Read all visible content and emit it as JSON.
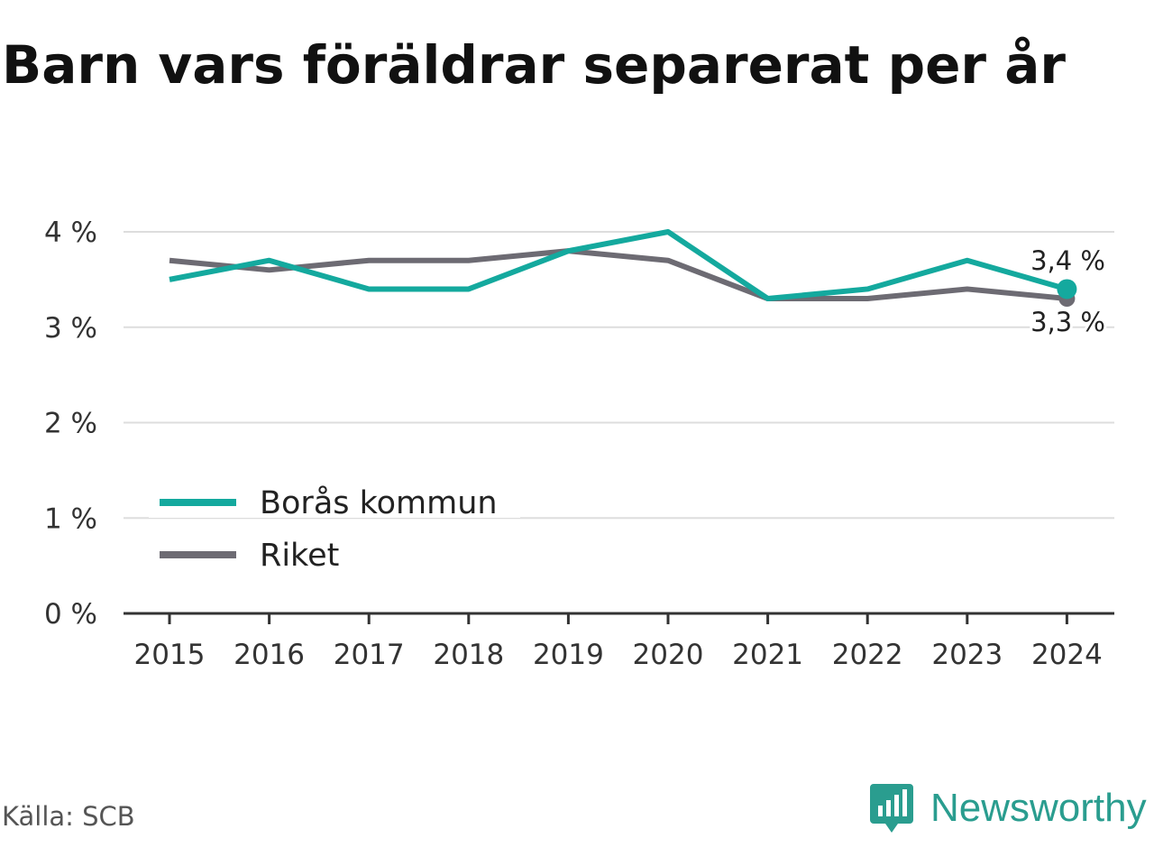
{
  "title": "Barn vars föräldrar separerat per år",
  "source": "Källa: SCB",
  "brand": {
    "name": "Newsworthy",
    "icon": "newsworthy-logo-icon",
    "color": "#2a9d8f"
  },
  "chart_data": {
    "type": "line",
    "x": [
      "2015",
      "2016",
      "2017",
      "2018",
      "2019",
      "2020",
      "2021",
      "2022",
      "2023",
      "2024"
    ],
    "series": [
      {
        "name": "Borås kommun",
        "color": "#14a99e",
        "values": [
          3.5,
          3.7,
          3.4,
          3.4,
          3.8,
          4.0,
          3.3,
          3.4,
          3.7,
          3.4
        ]
      },
      {
        "name": "Riket",
        "color": "#6d6b73",
        "values": [
          3.7,
          3.6,
          3.7,
          3.7,
          3.8,
          3.7,
          3.3,
          3.3,
          3.4,
          3.3
        ]
      }
    ],
    "yticks": [
      "0 %",
      "1 %",
      "2 %",
      "3 %",
      "4 %"
    ],
    "ylim": [
      0,
      4
    ],
    "end_labels": [
      "3,4 %",
      "3,3 %"
    ],
    "legend_position": "bottom-left",
    "grid": true
  }
}
